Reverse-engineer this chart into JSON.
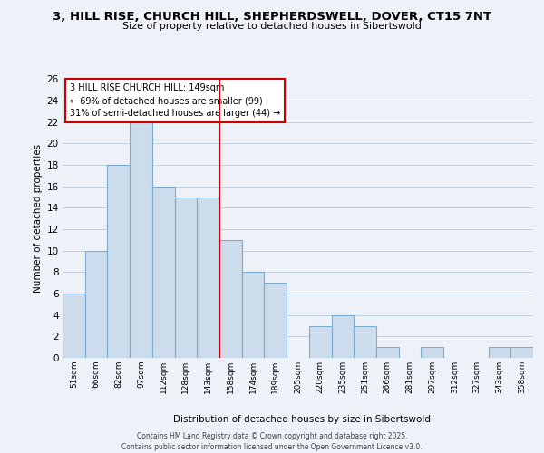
{
  "title_line1": "3, HILL RISE, CHURCH HILL, SHEPHERDSWELL, DOVER, CT15 7NT",
  "title_line2": "Size of property relative to detached houses in Sibertswold",
  "xlabel": "Distribution of detached houses by size in Sibertswold",
  "ylabel": "Number of detached properties",
  "bar_labels": [
    "51sqm",
    "66sqm",
    "82sqm",
    "97sqm",
    "112sqm",
    "128sqm",
    "143sqm",
    "158sqm",
    "174sqm",
    "189sqm",
    "205sqm",
    "220sqm",
    "235sqm",
    "251sqm",
    "266sqm",
    "281sqm",
    "297sqm",
    "312sqm",
    "327sqm",
    "343sqm",
    "358sqm"
  ],
  "bar_values": [
    6,
    10,
    18,
    22,
    16,
    15,
    15,
    11,
    8,
    7,
    0,
    3,
    4,
    3,
    1,
    0,
    1,
    0,
    0,
    1,
    1
  ],
  "bar_color": "#cddcec",
  "bar_edgecolor": "#7aacd0",
  "ref_line_index": 6.5,
  "ref_line_color": "#cc0000",
  "annotation_line1": "3 HILL RISE CHURCH HILL: 149sqm",
  "annotation_line2": "← 69% of detached houses are smaller (99)",
  "annotation_line3": "31% of semi-detached houses are larger (44) →",
  "ylim": [
    0,
    26
  ],
  "yticks": [
    0,
    2,
    4,
    6,
    8,
    10,
    12,
    14,
    16,
    18,
    20,
    22,
    24,
    26
  ],
  "footer_line1": "Contains HM Land Registry data © Crown copyright and database right 2025.",
  "footer_line2": "Contains public sector information licensed under the Open Government Licence v3.0.",
  "background_color": "#eef2f8",
  "plot_background": "#eef2f8",
  "grid_color": "#c0cfe0"
}
